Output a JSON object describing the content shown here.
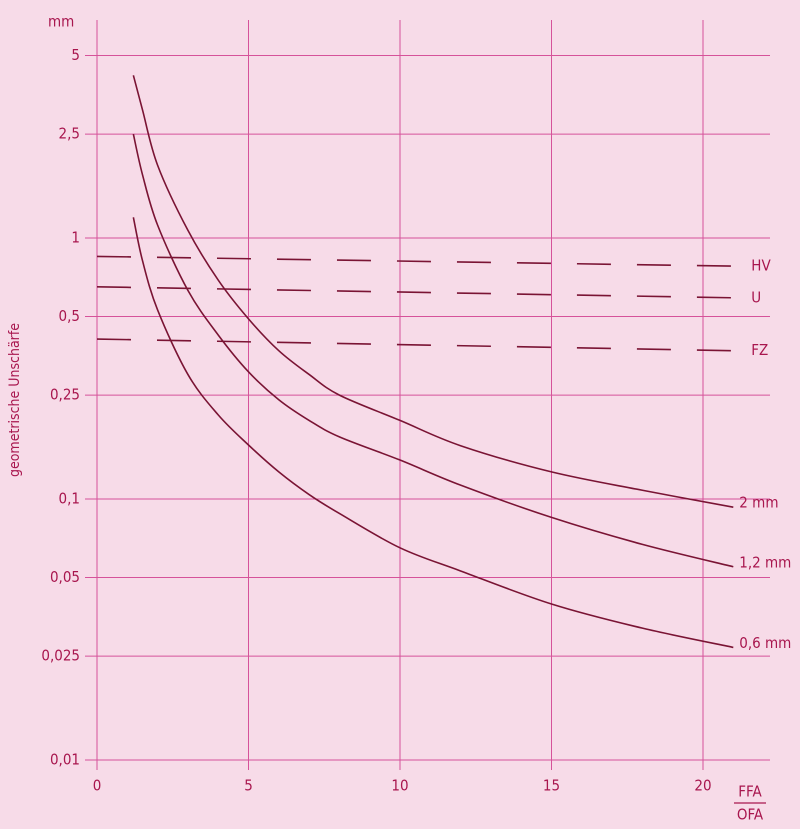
{
  "chart_data": {
    "type": "line",
    "y_label": "geometrische Unschärfe",
    "y_unit": "mm",
    "x_label": [
      "FFA",
      "OFA"
    ],
    "log_y": true,
    "grid": true,
    "xlim": [
      0,
      22
    ],
    "xticks": [
      0,
      5,
      10,
      15,
      20
    ],
    "ylim": [
      0.01,
      7
    ],
    "yticks": [
      {
        "value": 0.01,
        "label": "0,01"
      },
      {
        "value": 0.025,
        "label": "0,025"
      },
      {
        "value": 0.05,
        "label": "0,05"
      },
      {
        "value": 0.1,
        "label": "0,1"
      },
      {
        "value": 0.25,
        "label": "0,25"
      },
      {
        "value": 0.5,
        "label": "0,5"
      },
      1,
      {
        "value": 2.5,
        "label": "2,5"
      },
      5
    ],
    "series": [
      {
        "name": "HV",
        "color": "#7a1434",
        "dashed": true,
        "x": [
          0,
          21
        ],
        "values": [
          0.85,
          0.78
        ]
      },
      {
        "name": "U",
        "color": "#7a1434",
        "dashed": true,
        "x": [
          0,
          21
        ],
        "values": [
          0.65,
          0.59
        ]
      },
      {
        "name": "FZ",
        "color": "#7a1434",
        "dashed": true,
        "x": [
          0,
          21
        ],
        "values": [
          0.41,
          0.37
        ]
      },
      {
        "name": "2 mm",
        "color": "#7a1434",
        "dashed": false,
        "x": [
          1.2,
          1.5,
          2,
          3,
          4,
          5,
          6,
          7,
          8,
          10,
          12,
          15,
          18,
          21
        ],
        "values": [
          4.2,
          3.1,
          1.9,
          1.07,
          0.69,
          0.49,
          0.37,
          0.3,
          0.25,
          0.2,
          0.16,
          0.127,
          0.108,
          0.093
        ]
      },
      {
        "name": "1,2 mm",
        "color": "#7a1434",
        "dashed": false,
        "x": [
          1.2,
          1.5,
          2,
          3,
          4,
          5,
          6,
          7,
          8,
          10,
          12,
          15,
          18,
          21
        ],
        "values": [
          2.5,
          1.75,
          1.12,
          0.63,
          0.425,
          0.307,
          0.24,
          0.2,
          0.173,
          0.141,
          0.113,
          0.085,
          0.067,
          0.055
        ]
      },
      {
        "name": "0,6 mm",
        "color": "#7a1434",
        "dashed": false,
        "x": [
          1.2,
          1.5,
          2,
          3,
          4,
          5,
          6,
          7,
          8,
          10,
          12,
          15,
          18,
          21
        ],
        "values": [
          1.2,
          0.82,
          0.53,
          0.3,
          0.21,
          0.161,
          0.127,
          0.104,
          0.088,
          0.065,
          0.053,
          0.0396,
          0.032,
          0.027
        ]
      }
    ]
  }
}
